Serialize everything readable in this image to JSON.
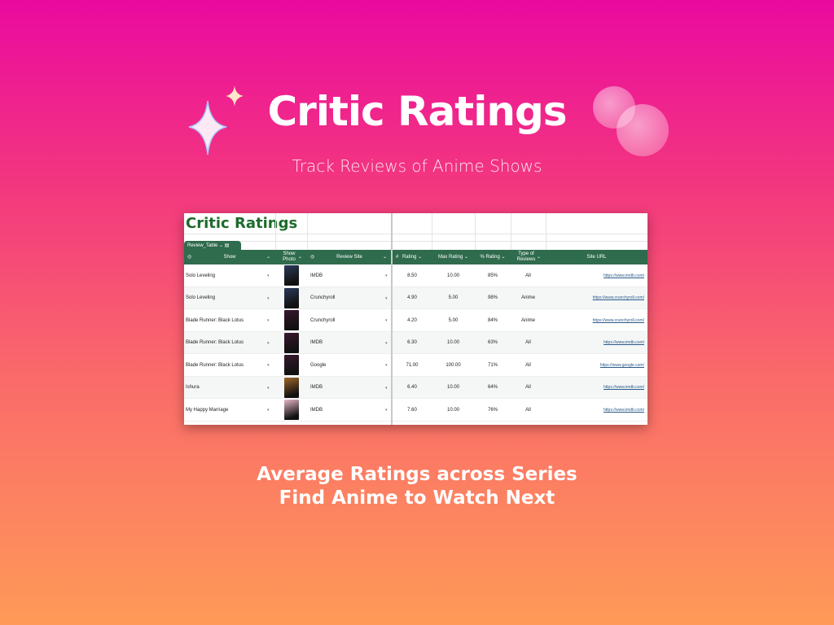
{
  "hero": {
    "title": "Critic Ratings",
    "subtitle": "Track Reviews of Anime Shows",
    "tagline1": "Average Ratings across Series",
    "tagline2": "Find Anime to Watch Next"
  },
  "sheet": {
    "title": "Critic Ratings",
    "tab": "Review_Table",
    "columns": [
      "Show",
      "Show Photo",
      "Review Site",
      "Rating",
      "Max Rating",
      "% Rating",
      "Type of Reviews",
      "Site URL"
    ],
    "rows": [
      {
        "show": "Solo Leveling",
        "site": "IMDB",
        "rating": "8.50",
        "max": "10.00",
        "pct": "85%",
        "type": "All",
        "url": "https://www.imdb.com/",
        "photo": "#2a3a5a"
      },
      {
        "show": "Solo Leveling",
        "site": "Crunchyroll",
        "rating": "4.90",
        "max": "5.00",
        "pct": "98%",
        "type": "Anime",
        "url": "https://www.crunchyroll.com/",
        "photo": "#2a3a5a"
      },
      {
        "show": "Blade Runner: Black Lotus",
        "site": "Crunchyroll",
        "rating": "4.20",
        "max": "5.00",
        "pct": "84%",
        "type": "Anime",
        "url": "https://www.crunchyroll.com/",
        "photo": "#3a1830"
      },
      {
        "show": "Blade Runner: Black Lotus",
        "site": "IMDB",
        "rating": "6.30",
        "max": "10.00",
        "pct": "63%",
        "type": "All",
        "url": "https://www.imdb.com/",
        "photo": "#3a1830"
      },
      {
        "show": "Blade Runner: Black Lotus",
        "site": "Google",
        "rating": "71.00",
        "max": "100.00",
        "pct": "71%",
        "type": "All",
        "url": "https://www.google.com/",
        "photo": "#3a1830"
      },
      {
        "show": "Ishura",
        "site": "IMDB",
        "rating": "6.40",
        "max": "10.00",
        "pct": "64%",
        "type": "All",
        "url": "https://www.imdb.com/",
        "photo": "#a0682a"
      },
      {
        "show": "My Happy Marriage",
        "site": "IMDB",
        "rating": "7.60",
        "max": "10.00",
        "pct": "76%",
        "type": "All",
        "url": "https://www.imdb.com/",
        "photo": "#e8b8c8"
      }
    ]
  },
  "colors": {
    "header": "#2f6b4d",
    "title": "#1e6b2c"
  }
}
